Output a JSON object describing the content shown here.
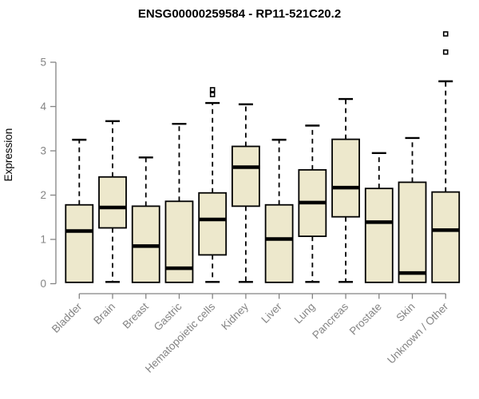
{
  "chart_data": {
    "type": "boxplot",
    "title": "ENSG00000259584 - RP11-521C20.2",
    "xlabel": "",
    "ylabel": "Expression",
    "ylim": [
      0,
      5
    ],
    "yticks": [
      0,
      1,
      2,
      3,
      4,
      5
    ],
    "grid": false,
    "legend": "none",
    "categories": [
      "Bladder",
      "Brain",
      "Breast",
      "Gastric",
      "Hematopoietic cells",
      "Kidney",
      "Liver",
      "Lung",
      "Pancreas",
      "Prostate",
      "Skin",
      "Unknown / Other"
    ],
    "series": [
      {
        "label": "Bladder",
        "whisker_low": 0.03,
        "q1": 0.03,
        "median": 1.19,
        "q3": 1.78,
        "whisker_high": 3.25,
        "outliers": []
      },
      {
        "label": "Brain",
        "whisker_low": 0.04,
        "q1": 1.26,
        "median": 1.72,
        "q3": 2.41,
        "whisker_high": 3.67,
        "outliers": []
      },
      {
        "label": "Breast",
        "whisker_low": 0.03,
        "q1": 0.03,
        "median": 0.85,
        "q3": 1.75,
        "whisker_high": 2.85,
        "outliers": []
      },
      {
        "label": "Gastric",
        "whisker_low": 0.03,
        "q1": 0.03,
        "median": 0.35,
        "q3": 1.86,
        "whisker_high": 3.61,
        "outliers": []
      },
      {
        "label": "Hematopoietic cells",
        "whisker_low": 0.04,
        "q1": 0.65,
        "median": 1.45,
        "q3": 2.05,
        "whisker_high": 4.08,
        "outliers": [
          4.27,
          4.38
        ]
      },
      {
        "label": "Kidney",
        "whisker_low": 0.04,
        "q1": 1.75,
        "median": 2.63,
        "q3": 3.1,
        "whisker_high": 4.05,
        "outliers": []
      },
      {
        "label": "Liver",
        "whisker_low": 0.03,
        "q1": 0.03,
        "median": 1.01,
        "q3": 1.78,
        "whisker_high": 3.25,
        "outliers": []
      },
      {
        "label": "Lung",
        "whisker_low": 0.04,
        "q1": 1.07,
        "median": 1.83,
        "q3": 2.57,
        "whisker_high": 3.57,
        "outliers": []
      },
      {
        "label": "Pancreas",
        "whisker_low": 0.04,
        "q1": 1.51,
        "median": 2.17,
        "q3": 3.26,
        "whisker_high": 4.17,
        "outliers": []
      },
      {
        "label": "Prostate",
        "whisker_low": 0.03,
        "q1": 0.03,
        "median": 1.39,
        "q3": 2.15,
        "whisker_high": 2.95,
        "outliers": []
      },
      {
        "label": "Skin",
        "whisker_low": 0.03,
        "q1": 0.03,
        "median": 0.24,
        "q3": 2.29,
        "whisker_high": 3.29,
        "outliers": []
      },
      {
        "label": "Unknown / Other",
        "whisker_low": 0.03,
        "q1": 0.03,
        "median": 1.21,
        "q3": 2.07,
        "whisker_high": 4.57,
        "outliers": [
          5.23,
          5.64
        ]
      }
    ],
    "colors": {
      "box_fill": "#EDE8CC",
      "box_stroke": "#000000",
      "median": "#000000",
      "whisker": "#000000",
      "outlier_stroke": "#000000",
      "outlier_fill": "#ffffff",
      "axis": "#848484",
      "tick_text": "#848484",
      "title_text": "#000000",
      "background": "#ffffff"
    }
  }
}
